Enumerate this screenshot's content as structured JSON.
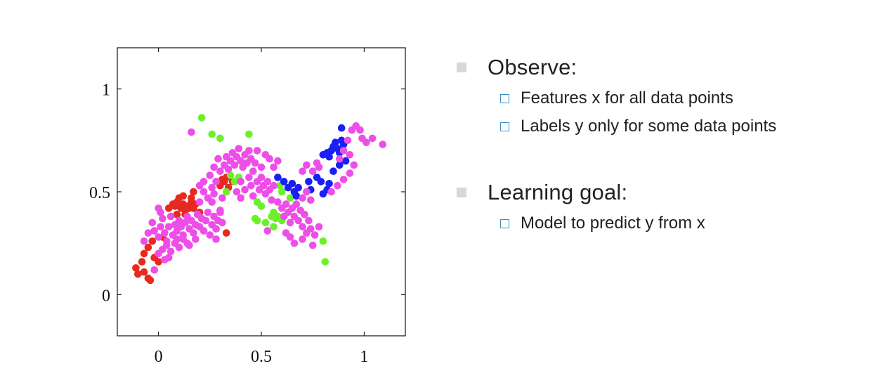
{
  "chart_data": {
    "type": "scatter",
    "title": "",
    "xlabel": "",
    "ylabel": "",
    "xlim": [
      -0.2,
      1.2
    ],
    "ylim": [
      -0.2,
      1.2
    ],
    "x_ticks": [
      0,
      0.5,
      1
    ],
    "y_ticks": [
      0,
      0.5,
      1
    ],
    "x_tick_labels": [
      "0",
      "0.5",
      "1"
    ],
    "y_tick_labels": [
      "0",
      "0.5",
      "1"
    ],
    "grid": false,
    "legend": "none",
    "series": [
      {
        "color": "#e8291f",
        "points": [
          [
            -0.11,
            0.13
          ],
          [
            -0.1,
            0.1
          ],
          [
            -0.08,
            0.16
          ],
          [
            -0.07,
            0.11
          ],
          [
            -0.05,
            0.08
          ],
          [
            -0.04,
            0.07
          ],
          [
            -0.07,
            0.2
          ],
          [
            -0.05,
            0.23
          ],
          [
            -0.02,
            0.18
          ],
          [
            0.0,
            0.16
          ],
          [
            -0.03,
            0.26
          ],
          [
            0.02,
            0.28
          ],
          [
            0.05,
            0.42
          ],
          [
            0.07,
            0.44
          ],
          [
            0.08,
            0.43
          ],
          [
            0.09,
            0.45
          ],
          [
            0.1,
            0.43
          ],
          [
            0.11,
            0.42
          ],
          [
            0.12,
            0.44
          ],
          [
            0.13,
            0.41
          ],
          [
            0.14,
            0.43
          ],
          [
            0.15,
            0.42
          ],
          [
            0.16,
            0.45
          ],
          [
            0.17,
            0.42
          ],
          [
            0.18,
            0.44
          ],
          [
            0.1,
            0.47
          ],
          [
            0.12,
            0.48
          ],
          [
            0.16,
            0.47
          ],
          [
            0.17,
            0.5
          ],
          [
            0.09,
            0.39
          ],
          [
            0.13,
            0.39
          ],
          [
            0.2,
            0.4
          ],
          [
            0.33,
            0.3
          ],
          [
            0.32,
            0.55
          ],
          [
            0.3,
            0.53
          ],
          [
            0.31,
            0.56
          ],
          [
            0.33,
            0.57
          ],
          [
            0.34,
            0.52
          ],
          [
            0.36,
            0.55
          ]
        ]
      },
      {
        "color": "#6cf02c",
        "points": [
          [
            0.21,
            0.86
          ],
          [
            0.26,
            0.78
          ],
          [
            0.3,
            0.76
          ],
          [
            0.44,
            0.78
          ],
          [
            0.33,
            0.5
          ],
          [
            0.35,
            0.58
          ],
          [
            0.37,
            0.55
          ],
          [
            0.39,
            0.57
          ],
          [
            0.48,
            0.45
          ],
          [
            0.5,
            0.43
          ],
          [
            0.47,
            0.37
          ],
          [
            0.48,
            0.36
          ],
          [
            0.52,
            0.35
          ],
          [
            0.55,
            0.38
          ],
          [
            0.56,
            0.4
          ],
          [
            0.57,
            0.37
          ],
          [
            0.56,
            0.33
          ],
          [
            0.58,
            0.38
          ],
          [
            0.6,
            0.36
          ],
          [
            0.59,
            0.53
          ],
          [
            0.6,
            0.5
          ],
          [
            0.64,
            0.47
          ],
          [
            0.8,
            0.26
          ],
          [
            0.81,
            0.16
          ]
        ]
      },
      {
        "color": "#1a1ff5",
        "points": [
          [
            0.58,
            0.57
          ],
          [
            0.61,
            0.55
          ],
          [
            0.63,
            0.52
          ],
          [
            0.65,
            0.54
          ],
          [
            0.66,
            0.5
          ],
          [
            0.68,
            0.52
          ],
          [
            0.67,
            0.48
          ],
          [
            0.73,
            0.55
          ],
          [
            0.74,
            0.51
          ],
          [
            0.77,
            0.57
          ],
          [
            0.79,
            0.55
          ],
          [
            0.8,
            0.49
          ],
          [
            0.82,
            0.51
          ],
          [
            0.83,
            0.54
          ],
          [
            0.8,
            0.68
          ],
          [
            0.82,
            0.69
          ],
          [
            0.83,
            0.67
          ],
          [
            0.84,
            0.7
          ],
          [
            0.85,
            0.72
          ],
          [
            0.86,
            0.74
          ],
          [
            0.87,
            0.71
          ],
          [
            0.88,
            0.69
          ],
          [
            0.89,
            0.75
          ],
          [
            0.9,
            0.73
          ],
          [
            0.89,
            0.81
          ],
          [
            0.91,
            0.65
          ],
          [
            0.88,
            0.63
          ],
          [
            0.85,
            0.6
          ]
        ]
      },
      {
        "color": "#ee4ee8",
        "points": [
          [
            -0.07,
            0.26
          ],
          [
            -0.05,
            0.3
          ],
          [
            -0.03,
            0.35
          ],
          [
            -0.02,
            0.31
          ],
          [
            0.0,
            0.28
          ],
          [
            0.01,
            0.33
          ],
          [
            0.02,
            0.37
          ],
          [
            0.03,
            0.3
          ],
          [
            0.04,
            0.26
          ],
          [
            0.05,
            0.33
          ],
          [
            0.06,
            0.38
          ],
          [
            0.07,
            0.29
          ],
          [
            0.08,
            0.34
          ],
          [
            0.09,
            0.31
          ],
          [
            0.1,
            0.36
          ],
          [
            0.11,
            0.33
          ],
          [
            0.12,
            0.29
          ],
          [
            0.13,
            0.35
          ],
          [
            0.14,
            0.38
          ],
          [
            0.15,
            0.32
          ],
          [
            0.16,
            0.36
          ],
          [
            0.17,
            0.3
          ],
          [
            0.18,
            0.34
          ],
          [
            0.19,
            0.39
          ],
          [
            0.2,
            0.33
          ],
          [
            0.21,
            0.37
          ],
          [
            0.22,
            0.31
          ],
          [
            0.23,
            0.36
          ],
          [
            0.24,
            0.4
          ],
          [
            0.25,
            0.29
          ],
          [
            0.26,
            0.34
          ],
          [
            0.27,
            0.38
          ],
          [
            0.28,
            0.32
          ],
          [
            0.29,
            0.36
          ],
          [
            0.3,
            0.41
          ],
          [
            0.02,
            0.22
          ],
          [
            0.04,
            0.24
          ],
          [
            0.06,
            0.21
          ],
          [
            0.08,
            0.25
          ],
          [
            0.1,
            0.23
          ],
          [
            0.12,
            0.27
          ],
          [
            0.14,
            0.25
          ],
          [
            0.05,
            0.18
          ],
          [
            0.03,
            0.17
          ],
          [
            -0.02,
            0.12
          ],
          [
            0.0,
            0.2
          ],
          [
            0.09,
            0.27
          ],
          [
            0.01,
            0.4
          ],
          [
            0.0,
            0.42
          ],
          [
            0.15,
            0.24
          ],
          [
            0.18,
            0.27
          ],
          [
            0.2,
            0.45
          ],
          [
            0.22,
            0.5
          ],
          [
            0.24,
            0.47
          ],
          [
            0.26,
            0.52
          ],
          [
            0.28,
            0.55
          ],
          [
            0.25,
            0.58
          ],
          [
            0.22,
            0.55
          ],
          [
            0.2,
            0.53
          ],
          [
            0.27,
            0.62
          ],
          [
            0.29,
            0.66
          ],
          [
            0.3,
            0.6
          ],
          [
            0.32,
            0.63
          ],
          [
            0.33,
            0.67
          ],
          [
            0.34,
            0.61
          ],
          [
            0.35,
            0.65
          ],
          [
            0.36,
            0.69
          ],
          [
            0.37,
            0.63
          ],
          [
            0.38,
            0.67
          ],
          [
            0.39,
            0.71
          ],
          [
            0.4,
            0.65
          ],
          [
            0.41,
            0.62
          ],
          [
            0.42,
            0.68
          ],
          [
            0.43,
            0.64
          ],
          [
            0.44,
            0.7
          ],
          [
            0.45,
            0.66
          ],
          [
            0.46,
            0.6
          ],
          [
            0.47,
            0.64
          ],
          [
            0.48,
            0.7
          ],
          [
            0.5,
            0.62
          ],
          [
            0.52,
            0.68
          ],
          [
            0.54,
            0.66
          ],
          [
            0.56,
            0.62
          ],
          [
            0.58,
            0.65
          ],
          [
            0.4,
            0.55
          ],
          [
            0.42,
            0.51
          ],
          [
            0.44,
            0.57
          ],
          [
            0.45,
            0.53
          ],
          [
            0.46,
            0.48
          ],
          [
            0.48,
            0.55
          ],
          [
            0.49,
            0.51
          ],
          [
            0.5,
            0.57
          ],
          [
            0.51,
            0.53
          ],
          [
            0.52,
            0.49
          ],
          [
            0.53,
            0.55
          ],
          [
            0.54,
            0.51
          ],
          [
            0.55,
            0.46
          ],
          [
            0.56,
            0.53
          ],
          [
            0.38,
            0.5
          ],
          [
            0.4,
            0.47
          ],
          [
            0.58,
            0.45
          ],
          [
            0.6,
            0.42
          ],
          [
            0.61,
            0.38
          ],
          [
            0.62,
            0.44
          ],
          [
            0.63,
            0.4
          ],
          [
            0.64,
            0.35
          ],
          [
            0.65,
            0.42
          ],
          [
            0.66,
            0.38
          ],
          [
            0.67,
            0.44
          ],
          [
            0.68,
            0.36
          ],
          [
            0.69,
            0.41
          ],
          [
            0.7,
            0.33
          ],
          [
            0.71,
            0.39
          ],
          [
            0.72,
            0.3
          ],
          [
            0.73,
            0.36
          ],
          [
            0.74,
            0.32
          ],
          [
            0.76,
            0.29
          ],
          [
            0.78,
            0.33
          ],
          [
            0.62,
            0.3
          ],
          [
            0.64,
            0.28
          ],
          [
            0.66,
            0.25
          ],
          [
            0.7,
            0.27
          ],
          [
            0.75,
            0.24
          ],
          [
            0.53,
            0.31
          ],
          [
            0.7,
            0.47
          ],
          [
            0.72,
            0.5
          ],
          [
            0.74,
            0.46
          ],
          [
            0.7,
            0.6
          ],
          [
            0.72,
            0.63
          ],
          [
            0.75,
            0.6
          ],
          [
            0.77,
            0.64
          ],
          [
            0.78,
            0.62
          ],
          [
            0.88,
            0.66
          ],
          [
            0.9,
            0.7
          ],
          [
            0.92,
            0.75
          ],
          [
            0.93,
            0.68
          ],
          [
            0.94,
            0.8
          ],
          [
            0.96,
            0.82
          ],
          [
            0.98,
            0.8
          ],
          [
            0.99,
            0.76
          ],
          [
            1.01,
            0.74
          ],
          [
            1.04,
            0.76
          ],
          [
            1.09,
            0.73
          ],
          [
            0.95,
            0.63
          ],
          [
            0.93,
            0.59
          ],
          [
            0.9,
            0.56
          ],
          [
            0.87,
            0.53
          ],
          [
            0.84,
            0.5
          ],
          [
            0.16,
            0.79
          ],
          [
            0.26,
            0.45
          ],
          [
            0.27,
            0.49
          ],
          [
            0.31,
            0.47
          ],
          [
            0.3,
            0.4
          ],
          [
            0.31,
            0.35
          ],
          [
            0.28,
            0.27
          ]
        ]
      }
    ]
  },
  "bullets": [
    {
      "label": "Observe:",
      "sub": [
        "Features x for all data points",
        "Labels y only for some data points"
      ]
    },
    {
      "label": "Learning goal:",
      "sub": [
        "Model to predict y from x"
      ]
    }
  ]
}
